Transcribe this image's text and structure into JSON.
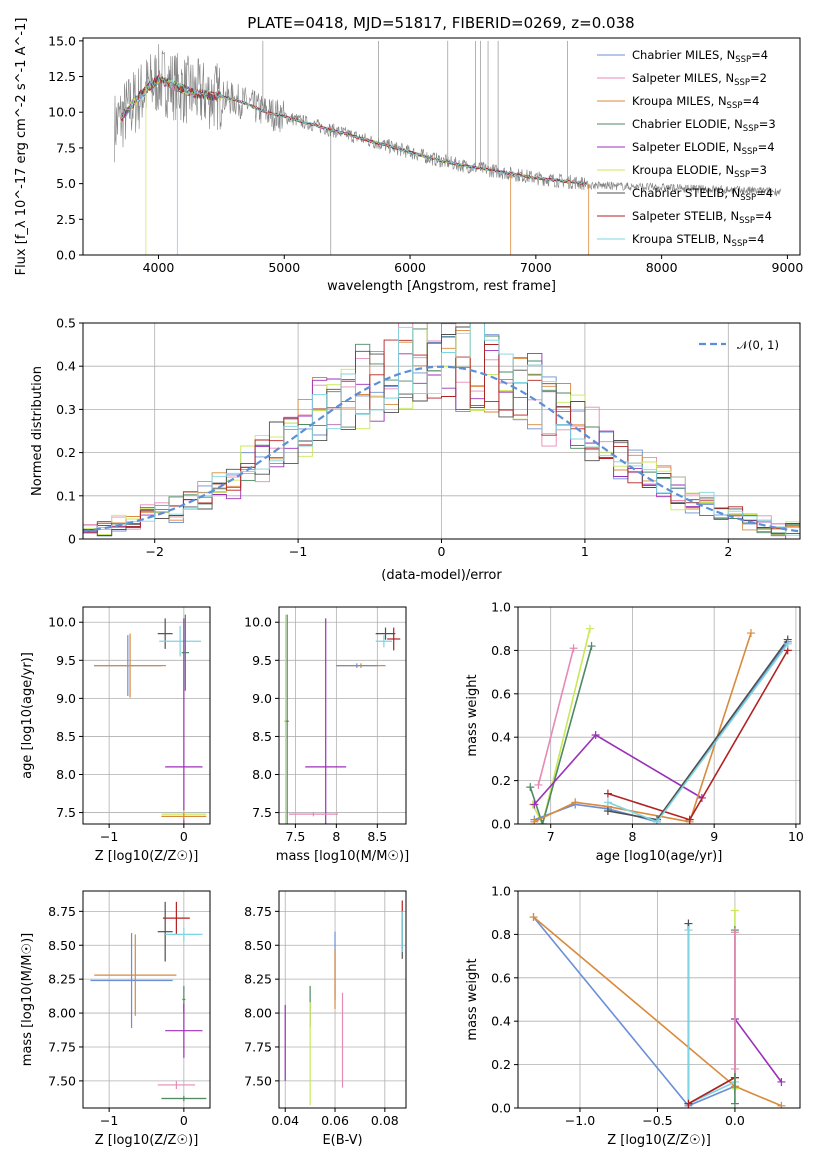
{
  "figure": {
    "title": "PLATE=0418, MJD=51817, FIBERID=0269, z=0.038"
  },
  "colors": {
    "Chabrier MILES": "#6b8fd6",
    "Salpeter MILES": "#e889b5",
    "Kroupa MILES": "#d98a3c",
    "Chabrier ELODIE": "#4e8a64",
    "Salpeter ELODIE": "#9b30b8",
    "Kroupa ELODIE": "#c8e85a",
    "Chabrier STELIB": "#505050",
    "Salpeter STELIB": "#b22222",
    "Kroupa STELIB": "#7ed4e0",
    "data": "#808080",
    "gauss": "#5b8fd6"
  },
  "chart_data": [
    {
      "id": "spectrum",
      "type": "line",
      "xlabel": "wavelength [Angstrom, rest frame]",
      "ylabel": "Flux [f_λ 10^-17 erg cm^-2 s^-1 A^-1]",
      "xlim": [
        3400,
        9100
      ],
      "ylim": [
        0,
        15.2
      ],
      "xticks": [
        4000,
        5000,
        6000,
        7000,
        8000,
        9000
      ],
      "yticks": [
        0.0,
        2.5,
        5.0,
        7.5,
        10.0,
        12.5,
        15.0
      ],
      "grid": false,
      "legend_placement": "upper-right",
      "legend": [
        {
          "name": "Chabrier MILES",
          "nssp": "4"
        },
        {
          "name": "Salpeter MILES",
          "nssp": "2"
        },
        {
          "name": "Kroupa MILES",
          "nssp": "4"
        },
        {
          "name": "Chabrier ELODIE",
          "nssp": "3"
        },
        {
          "name": "Salpeter ELODIE",
          "nssp": "4"
        },
        {
          "name": "Kroupa ELODIE",
          "nssp": "3"
        },
        {
          "name": "Chabrier STELIB",
          "nssp": "4"
        },
        {
          "name": "Salpeter STELIB",
          "nssp": "4"
        },
        {
          "name": "Kroupa STELIB",
          "nssp": "4"
        }
      ],
      "continuum": {
        "x": [
          3650,
          3700,
          3800,
          3900,
          4000,
          4100,
          4200,
          4300,
          4400,
          4500,
          4600,
          4700,
          4800,
          4900,
          5000,
          5200,
          5400,
          5600,
          5800,
          6000,
          6200,
          6400,
          6600,
          6800,
          7000,
          7200,
          7400
        ],
        "y": [
          9.0,
          9.6,
          10.6,
          11.6,
          12.3,
          12.0,
          11.6,
          11.3,
          11.2,
          11.1,
          10.9,
          10.6,
          10.2,
          9.9,
          9.7,
          9.2,
          8.7,
          8.2,
          7.7,
          7.2,
          6.7,
          6.3,
          6.0,
          5.7,
          5.4,
          5.2,
          5.0
        ]
      }
    },
    {
      "id": "residuals",
      "type": "line",
      "xlabel": "(data-model)/error",
      "ylabel": "Normed distribution",
      "xlim": [
        -2.5,
        2.5
      ],
      "ylim": [
        0,
        0.5
      ],
      "xticks": [
        -2,
        -1,
        0,
        1,
        2
      ],
      "yticks": [
        0.0,
        0.1,
        0.2,
        0.3,
        0.4,
        0.5
      ],
      "grid": true,
      "legend_placement": "upper-right",
      "gauss_label": "𝒩(0, 1)",
      "bin_width": 0.1
    },
    {
      "id": "age-vs-Z",
      "type": "scatter",
      "xlabel": "Z [log10(Z/Z☉)]",
      "ylabel": "age [log10(age/yr)]",
      "xlim": [
        -1.35,
        0.35
      ],
      "ylim": [
        7.35,
        10.2
      ],
      "xticks": [
        -1,
        0
      ],
      "yticks": [
        7.5,
        8.0,
        8.5,
        9.0,
        9.5,
        10.0
      ],
      "grid": true,
      "errorbars": [
        {
          "series": "Chabrier MILES",
          "x": -0.75,
          "y": 9.43,
          "xerr": 0.45,
          "yerr": 0.4
        },
        {
          "series": "Kroupa MILES",
          "x": -0.72,
          "y": 9.43,
          "xerr": 0.48,
          "yerr": 0.42
        },
        {
          "series": "Chabrier STELIB",
          "x": -0.25,
          "y": 9.85,
          "xerr": 0.1,
          "yerr": 0.2
        },
        {
          "series": "Kroupa STELIB",
          "x": -0.05,
          "y": 9.75,
          "xerr": 0.28,
          "yerr": 0.2
        },
        {
          "series": "Chabrier ELODIE",
          "x": 0.02,
          "y": 9.6,
          "xerr": 0.05,
          "yerr": 0.5
        },
        {
          "series": "Salpeter ELODIE",
          "x": 0.0,
          "y": 8.1,
          "xerr": 0.25,
          "yerr": 1.95
        },
        {
          "series": "Kroupa ELODIE",
          "x": 0.0,
          "y": 7.48,
          "xerr": 0.3,
          "yerr": 0.05
        },
        {
          "series": "Kroupa MILES",
          "x": 0.0,
          "y": 7.45,
          "xerr": 0.3,
          "yerr": 0.05
        }
      ]
    },
    {
      "id": "age-vs-mass",
      "type": "scatter",
      "xlabel": "mass [log10(M/M☉)]",
      "ylabel": "",
      "xlim": [
        7.3,
        8.85
      ],
      "ylim": [
        7.35,
        10.2
      ],
      "xticks": [
        7.5,
        8.0,
        8.5
      ],
      "yticks": [
        7.5,
        8.0,
        8.5,
        9.0,
        9.5,
        10.0
      ],
      "grid": true,
      "errorbars": [
        {
          "series": "Kroupa MILES",
          "x": 8.3,
          "y": 9.43,
          "xerr": 0.3,
          "yerr": 0.03
        },
        {
          "series": "Chabrier MILES",
          "x": 8.25,
          "y": 9.43,
          "xerr": 0.25,
          "yerr": 0.03
        },
        {
          "series": "Chabrier STELIB",
          "x": 8.6,
          "y": 9.85,
          "xerr": 0.12,
          "yerr": 0.08
        },
        {
          "series": "Salpeter STELIB",
          "x": 8.7,
          "y": 9.78,
          "xerr": 0.08,
          "yerr": 0.15
        },
        {
          "series": "Kroupa STELIB",
          "x": 8.58,
          "y": 9.75,
          "xerr": 0.1,
          "yerr": 0.08
        },
        {
          "series": "Salpeter ELODIE",
          "x": 7.87,
          "y": 8.1,
          "xerr": 0.25,
          "yerr": 1.95
        },
        {
          "series": "Kroupa ELODIE",
          "x": 7.38,
          "y": 8.7,
          "xerr": 0.02,
          "yerr": 1.4
        },
        {
          "series": "Chabrier ELODIE",
          "x": 7.4,
          "y": 8.7,
          "xerr": 0.02,
          "yerr": 1.4
        },
        {
          "series": "Salpeter MILES",
          "x": 7.72,
          "y": 7.48,
          "xerr": 0.3,
          "yerr": 0.03
        }
      ]
    },
    {
      "id": "weight-vs-age",
      "type": "line",
      "xlabel": "age [log10(age/yr)]",
      "ylabel": "mass weight",
      "xlim": [
        6.6,
        10.05
      ],
      "ylim": [
        0,
        1.0
      ],
      "xticks": [
        7,
        8,
        9,
        10
      ],
      "yticks": [
        0.0,
        0.2,
        0.4,
        0.6,
        0.8,
        1.0
      ],
      "grid": true,
      "series": [
        {
          "series": "Kroupa ELODIE",
          "x": [
            6.78,
            6.9,
            7.48
          ],
          "y": [
            0.09,
            0.0,
            0.9
          ]
        },
        {
          "series": "Salpeter MILES",
          "x": [
            6.85,
            7.28
          ],
          "y": [
            0.18,
            0.81
          ]
        },
        {
          "series": "Chabrier ELODIE",
          "x": [
            6.75,
            6.9,
            7.5
          ],
          "y": [
            0.17,
            0.0,
            0.82
          ]
        },
        {
          "series": "Salpeter ELODIE",
          "x": [
            6.8,
            7.55,
            8.85
          ],
          "y": [
            0.09,
            0.41,
            0.12
          ]
        },
        {
          "series": "Chabrier MILES",
          "x": [
            6.8,
            7.3,
            7.7,
            8.3,
            9.9
          ],
          "y": [
            0.02,
            0.09,
            0.07,
            0.01,
            0.84
          ]
        },
        {
          "series": "Kroupa MILES",
          "x": [
            6.8,
            7.3,
            7.7,
            8.7,
            9.45
          ],
          "y": [
            0.01,
            0.1,
            0.08,
            0.01,
            0.88
          ]
        },
        {
          "series": "Chabrier STELIB",
          "x": [
            7.7,
            8.3,
            9.9
          ],
          "y": [
            0.06,
            0.02,
            0.85
          ]
        },
        {
          "series": "Salpeter STELIB",
          "x": [
            7.7,
            8.7,
            9.9
          ],
          "y": [
            0.14,
            0.02,
            0.8
          ]
        },
        {
          "series": "Kroupa STELIB",
          "x": [
            7.7,
            8.3,
            9.9
          ],
          "y": [
            0.1,
            0.01,
            0.83
          ]
        }
      ]
    },
    {
      "id": "mass-vs-Z",
      "type": "scatter",
      "xlabel": "Z [log10(Z/Z☉)]",
      "ylabel": "mass [log10(M/M☉)]",
      "xlim": [
        -1.35,
        0.35
      ],
      "ylim": [
        7.3,
        8.9
      ],
      "xticks": [
        -1,
        0
      ],
      "yticks": [
        7.5,
        7.75,
        8.0,
        8.25,
        8.5,
        8.75
      ],
      "grid": true,
      "errorbars": [
        {
          "series": "Kroupa MILES",
          "x": -0.65,
          "y": 8.28,
          "xerr": 0.55,
          "yerr": 0.3
        },
        {
          "series": "Chabrier MILES",
          "x": -0.7,
          "y": 8.24,
          "xerr": 0.55,
          "yerr": 0.35
        },
        {
          "series": "Salpeter STELIB",
          "x": -0.1,
          "y": 8.7,
          "xerr": 0.18,
          "yerr": 0.12
        },
        {
          "series": "Chabrier STELIB",
          "x": -0.25,
          "y": 8.6,
          "xerr": 0.1,
          "yerr": 0.22
        },
        {
          "series": "Kroupa STELIB",
          "x": 0.0,
          "y": 8.58,
          "xerr": 0.25,
          "yerr": 0.05
        },
        {
          "series": "Chabrier ELODIE",
          "x": 0.0,
          "y": 8.1,
          "xerr": 0.02,
          "yerr": 0.1
        },
        {
          "series": "Salpeter ELODIE",
          "x": 0.0,
          "y": 7.87,
          "xerr": 0.25,
          "yerr": 0.2
        },
        {
          "series": "Salpeter MILES",
          "x": -0.1,
          "y": 7.47,
          "xerr": 0.25,
          "yerr": 0.03
        },
        {
          "series": "Kroupa ELODIE",
          "x": 0.0,
          "y": 7.37,
          "xerr": 0.3,
          "yerr": 0.02
        },
        {
          "series": "Chabrier ELODIE",
          "x": 0.0,
          "y": 7.37,
          "xerr": 0.3,
          "yerr": 0.02
        }
      ]
    },
    {
      "id": "mass-vs-ebv",
      "type": "scatter",
      "xlabel": "E(B-V)",
      "ylabel": "",
      "xlim": [
        0.0375,
        0.0885
      ],
      "ylim": [
        7.3,
        8.9
      ],
      "xticks": [
        0.04,
        0.06,
        0.08
      ],
      "yticks": [
        7.5,
        7.75,
        8.0,
        8.25,
        8.5,
        8.75
      ],
      "grid": true,
      "errorbars": [
        {
          "series": "Salpeter ELODIE",
          "x": 0.04,
          "y": 7.78,
          "xerr": 0,
          "yerr": 0.28
        },
        {
          "series": "Chabrier ELODIE",
          "x": 0.05,
          "y": 8.05,
          "xerr": 0,
          "yerr": 0.15
        },
        {
          "series": "Kroupa ELODIE",
          "x": 0.05,
          "y": 7.7,
          "xerr": 0,
          "yerr": 0.38
        },
        {
          "series": "Chabrier MILES",
          "x": 0.06,
          "y": 8.35,
          "xerr": 0,
          "yerr": 0.25
        },
        {
          "series": "Kroupa MILES",
          "x": 0.06,
          "y": 8.25,
          "xerr": 0,
          "yerr": 0.22
        },
        {
          "series": "Salpeter MILES",
          "x": 0.063,
          "y": 7.8,
          "xerr": 0,
          "yerr": 0.35
        },
        {
          "series": "Salpeter STELIB",
          "x": 0.087,
          "y": 8.65,
          "xerr": 0,
          "yerr": 0.18
        },
        {
          "series": "Chabrier STELIB",
          "x": 0.087,
          "y": 8.55,
          "xerr": 0,
          "yerr": 0.15
        },
        {
          "series": "Kroupa STELIB",
          "x": 0.087,
          "y": 8.6,
          "xerr": 0,
          "yerr": 0.15
        }
      ]
    },
    {
      "id": "weight-vs-Z",
      "type": "line",
      "xlabel": "Z [log10(Z/Z☉)]",
      "ylabel": "mass weight",
      "xlim": [
        -1.4,
        0.42
      ],
      "ylim": [
        0,
        1.0
      ],
      "xticks": [
        -1.0,
        -0.5,
        0.0
      ],
      "yticks": [
        0.0,
        0.2,
        0.4,
        0.6,
        0.8,
        1.0
      ],
      "tick_labels": [
        "−1.0",
        "−0.5",
        "0.0"
      ],
      "grid": true,
      "series": [
        {
          "series": "Chabrier MILES",
          "x": [
            -1.3,
            -0.3,
            0.0
          ],
          "y": [
            0.88,
            0.01,
            0.1
          ]
        },
        {
          "series": "Kroupa MILES",
          "x": [
            -1.3,
            0.0,
            0.3
          ],
          "y": [
            0.88,
            0.1,
            0.01
          ]
        },
        {
          "series": "Chabrier STELIB",
          "x": [
            -0.3,
            -0.3,
            0.0
          ],
          "y": [
            0.85,
            0.02,
            0.14
          ]
        },
        {
          "series": "Kroupa STELIB",
          "x": [
            -0.3,
            -0.3,
            0.0
          ],
          "y": [
            0.82,
            0.02,
            0.12
          ]
        },
        {
          "series": "Salpeter STELIB",
          "x": [
            -0.3,
            0.0
          ],
          "y": [
            0.02,
            0.14
          ]
        },
        {
          "series": "Salpeter ELODIE",
          "x": [
            0.0,
            0.0,
            0.3
          ],
          "y": [
            0.09,
            0.41,
            0.12
          ]
        },
        {
          "series": "Kroupa ELODIE",
          "x": [
            0.0,
            0.0
          ],
          "y": [
            0.09,
            0.91
          ]
        },
        {
          "series": "Chabrier ELODIE",
          "x": [
            0.0,
            0.0
          ],
          "y": [
            0.02,
            0.82
          ]
        },
        {
          "series": "Salpeter MILES",
          "x": [
            0.0,
            0.0
          ],
          "y": [
            0.18,
            0.81
          ]
        }
      ]
    }
  ]
}
